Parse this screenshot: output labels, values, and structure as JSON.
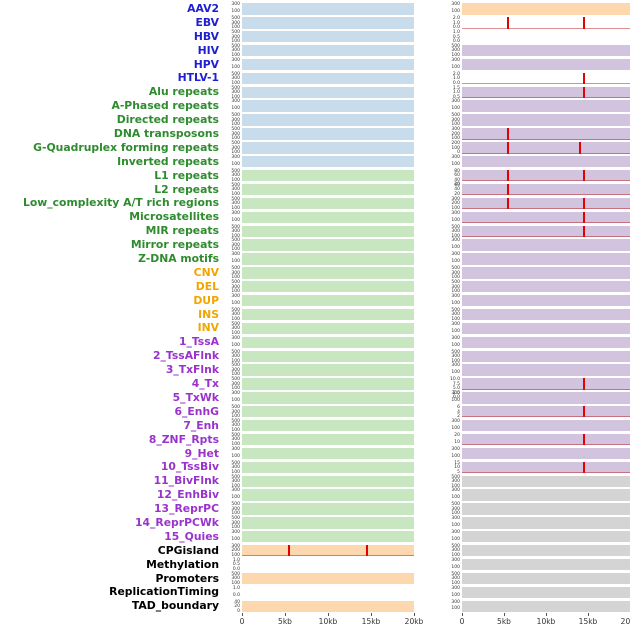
{
  "colors": {
    "labels": {
      "virus": "#1f1fd1",
      "repeat": "#2e8b2e",
      "sv": "#f0a500",
      "chromstate": "#9933cc",
      "other": "#000000"
    },
    "fills": {
      "blue": "#c8dcec",
      "green": "#c8e6bf",
      "orange": "#fdd7ae",
      "purple": "#d2c3de",
      "gray": "#d4d4d4",
      "white": "#ffffff"
    },
    "spike": "#e60000",
    "axis_text": "#333333"
  },
  "chart_data": {
    "type": "heatmap",
    "title": "",
    "description": "Two columns of per-feature genomic signal tracks over a 0-20kb window; red vertical lines mark signal spikes.",
    "x_axis": {
      "ticks": [
        "0",
        "5kb",
        "10kb",
        "15kb",
        "20kb"
      ],
      "range_kb": [
        0,
        20
      ],
      "tick_positions_kb": [
        0,
        5,
        10,
        15,
        20
      ]
    },
    "columns": [
      "left_track",
      "right_track"
    ],
    "rows": [
      {
        "label": "AAV2",
        "group": "virus",
        "left": {
          "fill": "blue",
          "yticks": [
            "300",
            "100"
          ],
          "spikes_kb": []
        },
        "right": {
          "fill": "orange",
          "yticks": [
            "300",
            "100"
          ],
          "spikes_kb": []
        }
      },
      {
        "label": "EBV",
        "group": "virus",
        "left": {
          "fill": "blue",
          "yticks": [
            "500",
            "300",
            "100"
          ],
          "spikes_kb": []
        },
        "right": {
          "fill": "white",
          "yticks": [
            "2.0",
            "1.0",
            "0.0"
          ],
          "spikes_kb": [
            5.5,
            14.5
          ]
        }
      },
      {
        "label": "HBV",
        "group": "virus",
        "left": {
          "fill": "blue",
          "yticks": [
            "500",
            "300",
            "100"
          ],
          "spikes_kb": []
        },
        "right": {
          "fill": "white",
          "yticks": [
            "1.0",
            "0.5",
            "0.0"
          ],
          "spikes_kb": []
        }
      },
      {
        "label": "HIV",
        "group": "virus",
        "left": {
          "fill": "blue",
          "yticks": [
            "500",
            "300",
            "100"
          ],
          "spikes_kb": []
        },
        "right": {
          "fill": "purple",
          "yticks": [
            "500",
            "300",
            "100"
          ],
          "spikes_kb": []
        }
      },
      {
        "label": "HPV",
        "group": "virus",
        "left": {
          "fill": "blue",
          "yticks": [
            "300",
            "100"
          ],
          "spikes_kb": []
        },
        "right": {
          "fill": "purple",
          "yticks": [
            "300",
            "100"
          ],
          "spikes_kb": []
        }
      },
      {
        "label": "HTLV-1",
        "group": "virus",
        "left": {
          "fill": "blue",
          "yticks": [
            "500",
            "300",
            "100"
          ],
          "spikes_kb": []
        },
        "right": {
          "fill": "white",
          "yticks": [
            "2.0",
            "1.0",
            "0.0"
          ],
          "spikes_kb": [
            14.5
          ]
        }
      },
      {
        "label": "Alu repeats",
        "group": "repeat",
        "left": {
          "fill": "blue",
          "yticks": [
            "500",
            "300",
            "100"
          ],
          "spikes_kb": []
        },
        "right": {
          "fill": "purple",
          "yticks": [
            "1.5",
            "1.0",
            "0.5"
          ],
          "spikes_kb": [
            14.5
          ]
        }
      },
      {
        "label": "A-Phased repeats",
        "group": "repeat",
        "left": {
          "fill": "blue",
          "yticks": [
            "300",
            "100"
          ],
          "spikes_kb": []
        },
        "right": {
          "fill": "purple",
          "yticks": [
            "300",
            "100"
          ],
          "spikes_kb": []
        }
      },
      {
        "label": "Directed repeats",
        "group": "repeat",
        "left": {
          "fill": "blue",
          "yticks": [
            "500",
            "300",
            "100"
          ],
          "spikes_kb": []
        },
        "right": {
          "fill": "purple",
          "yticks": [
            "500",
            "300",
            "100"
          ],
          "spikes_kb": []
        }
      },
      {
        "label": "DNA transposons",
        "group": "repeat",
        "left": {
          "fill": "blue",
          "yticks": [
            "500",
            "300",
            "100"
          ],
          "spikes_kb": []
        },
        "right": {
          "fill": "purple",
          "yticks": [
            "300",
            "200",
            "100"
          ],
          "spikes_kb": [
            5.5
          ]
        }
      },
      {
        "label": "G-Quadruplex forming repeats",
        "group": "repeat",
        "left": {
          "fill": "blue",
          "yticks": [
            "500",
            "300",
            "100"
          ],
          "spikes_kb": []
        },
        "right": {
          "fill": "purple",
          "yticks": [
            "200",
            "100",
            "0"
          ],
          "spikes_kb": [
            5.5,
            14.0
          ]
        }
      },
      {
        "label": "Inverted repeats",
        "group": "repeat",
        "left": {
          "fill": "blue",
          "yticks": [
            "300",
            "100"
          ],
          "spikes_kb": []
        },
        "right": {
          "fill": "purple",
          "yticks": [
            "300",
            "100"
          ],
          "spikes_kb": []
        }
      },
      {
        "label": "L1 repeats",
        "group": "repeat",
        "left": {
          "fill": "green",
          "yticks": [
            "500",
            "300",
            "100"
          ],
          "spikes_kb": []
        },
        "right": {
          "fill": "purple",
          "yticks": [
            "80",
            "60",
            "40",
            "20"
          ],
          "spikes_kb": [
            5.5,
            14.5
          ]
        }
      },
      {
        "label": "L2 repeats",
        "group": "repeat",
        "left": {
          "fill": "green",
          "yticks": [
            "500",
            "300",
            "100"
          ],
          "spikes_kb": []
        },
        "right": {
          "fill": "purple",
          "yticks": [
            "60",
            "40",
            "20"
          ],
          "spikes_kb": [
            5.5
          ]
        }
      },
      {
        "label": "Low_complexity A/T rich regions",
        "group": "repeat",
        "left": {
          "fill": "green",
          "yticks": [
            "500",
            "300",
            "100"
          ],
          "spikes_kb": []
        },
        "right": {
          "fill": "purple",
          "yticks": [
            "300",
            "200",
            "100"
          ],
          "spikes_kb": [
            5.5,
            14.5
          ]
        }
      },
      {
        "label": "Microsatellites",
        "group": "repeat",
        "left": {
          "fill": "green",
          "yticks": [
            "300",
            "100"
          ],
          "spikes_kb": []
        },
        "right": {
          "fill": "purple",
          "yticks": [
            "300",
            "100"
          ],
          "spikes_kb": [
            14.5
          ]
        }
      },
      {
        "label": "MIR repeats",
        "group": "repeat",
        "left": {
          "fill": "green",
          "yticks": [
            "500",
            "300",
            "100"
          ],
          "spikes_kb": []
        },
        "right": {
          "fill": "purple",
          "yticks": [
            "500",
            "300",
            "100"
          ],
          "spikes_kb": [
            14.5
          ]
        }
      },
      {
        "label": "Mirror repeats",
        "group": "repeat",
        "left": {
          "fill": "green",
          "yticks": [
            "500",
            "300",
            "100"
          ],
          "spikes_kb": []
        },
        "right": {
          "fill": "purple",
          "yticks": [
            "300",
            "100"
          ],
          "spikes_kb": []
        }
      },
      {
        "label": "Z-DNA motifs",
        "group": "repeat",
        "left": {
          "fill": "green",
          "yticks": [
            "300",
            "100"
          ],
          "spikes_kb": []
        },
        "right": {
          "fill": "purple",
          "yticks": [
            "300",
            "100"
          ],
          "spikes_kb": []
        }
      },
      {
        "label": "CNV",
        "group": "sv",
        "left": {
          "fill": "green",
          "yticks": [
            "500",
            "300",
            "100"
          ],
          "spikes_kb": []
        },
        "right": {
          "fill": "purple",
          "yticks": [
            "500",
            "300",
            "100"
          ],
          "spikes_kb": []
        }
      },
      {
        "label": "DEL",
        "group": "sv",
        "left": {
          "fill": "green",
          "yticks": [
            "500",
            "300",
            "100"
          ],
          "spikes_kb": []
        },
        "right": {
          "fill": "purple",
          "yticks": [
            "500",
            "300",
            "100"
          ],
          "spikes_kb": []
        }
      },
      {
        "label": "DUP",
        "group": "sv",
        "left": {
          "fill": "green",
          "yticks": [
            "300",
            "100"
          ],
          "spikes_kb": []
        },
        "right": {
          "fill": "purple",
          "yticks": [
            "300",
            "100"
          ],
          "spikes_kb": []
        }
      },
      {
        "label": "INS",
        "group": "sv",
        "left": {
          "fill": "green",
          "yticks": [
            "500",
            "300",
            "100"
          ],
          "spikes_kb": []
        },
        "right": {
          "fill": "purple",
          "yticks": [
            "500",
            "300",
            "100"
          ],
          "spikes_kb": []
        }
      },
      {
        "label": "INV",
        "group": "sv",
        "left": {
          "fill": "green",
          "yticks": [
            "500",
            "300",
            "100"
          ],
          "spikes_kb": []
        },
        "right": {
          "fill": "purple",
          "yticks": [
            "300",
            "100"
          ],
          "spikes_kb": []
        }
      },
      {
        "label": "1_TssA",
        "group": "chromstate",
        "left": {
          "fill": "green",
          "yticks": [
            "300",
            "100"
          ],
          "spikes_kb": []
        },
        "right": {
          "fill": "purple",
          "yticks": [
            "300",
            "100"
          ],
          "spikes_kb": []
        }
      },
      {
        "label": "2_TssAFlnk",
        "group": "chromstate",
        "left": {
          "fill": "green",
          "yticks": [
            "500",
            "300",
            "100"
          ],
          "spikes_kb": []
        },
        "right": {
          "fill": "purple",
          "yticks": [
            "500",
            "300",
            "100"
          ],
          "spikes_kb": []
        }
      },
      {
        "label": "3_TxFlnk",
        "group": "chromstate",
        "left": {
          "fill": "green",
          "yticks": [
            "500",
            "300",
            "100"
          ],
          "spikes_kb": []
        },
        "right": {
          "fill": "purple",
          "yticks": [
            "300",
            "100"
          ],
          "spikes_kb": []
        }
      },
      {
        "label": "4_Tx",
        "group": "chromstate",
        "left": {
          "fill": "green",
          "yticks": [
            "500",
            "300",
            "100"
          ],
          "spikes_kb": []
        },
        "right": {
          "fill": "purple",
          "yticks": [
            "10.0",
            "7.5",
            "5.0",
            "2.5",
            "0.0"
          ],
          "spikes_kb": [
            14.5
          ]
        }
      },
      {
        "label": "5_TxWk",
        "group": "chromstate",
        "left": {
          "fill": "green",
          "yticks": [
            "300",
            "100"
          ],
          "spikes_kb": []
        },
        "right": {
          "fill": "purple",
          "yticks": [
            "300",
            "100"
          ],
          "spikes_kb": []
        }
      },
      {
        "label": "6_EnhG",
        "group": "chromstate",
        "left": {
          "fill": "green",
          "yticks": [
            "500",
            "300",
            "100"
          ],
          "spikes_kb": []
        },
        "right": {
          "fill": "purple",
          "yticks": [
            "6",
            "4",
            "2"
          ],
          "spikes_kb": [
            14.5
          ]
        }
      },
      {
        "label": "7_Enh",
        "group": "chromstate",
        "left": {
          "fill": "green",
          "yticks": [
            "500",
            "300",
            "100"
          ],
          "spikes_kb": []
        },
        "right": {
          "fill": "purple",
          "yticks": [
            "300",
            "100"
          ],
          "spikes_kb": []
        }
      },
      {
        "label": "8_ZNF_Rpts",
        "group": "chromstate",
        "left": {
          "fill": "green",
          "yticks": [
            "500",
            "300",
            "100"
          ],
          "spikes_kb": []
        },
        "right": {
          "fill": "purple",
          "yticks": [
            "20",
            "10"
          ],
          "spikes_kb": [
            14.5
          ]
        }
      },
      {
        "label": "9_Het",
        "group": "chromstate",
        "left": {
          "fill": "green",
          "yticks": [
            "300",
            "100"
          ],
          "spikes_kb": []
        },
        "right": {
          "fill": "purple",
          "yticks": [
            "300",
            "100"
          ],
          "spikes_kb": []
        }
      },
      {
        "label": "10_TssBiv",
        "group": "chromstate",
        "left": {
          "fill": "green",
          "yticks": [
            "500",
            "300",
            "100"
          ],
          "spikes_kb": []
        },
        "right": {
          "fill": "purple",
          "yticks": [
            "15",
            "10",
            "5"
          ],
          "spikes_kb": [
            14.5
          ]
        }
      },
      {
        "label": "11_BivFlnk",
        "group": "chromstate",
        "left": {
          "fill": "green",
          "yticks": [
            "500",
            "300",
            "100"
          ],
          "spikes_kb": []
        },
        "right": {
          "fill": "gray",
          "yticks": [
            "500",
            "300",
            "100"
          ],
          "spikes_kb": []
        }
      },
      {
        "label": "12_EnhBiv",
        "group": "chromstate",
        "left": {
          "fill": "green",
          "yticks": [
            "300",
            "100"
          ],
          "spikes_kb": []
        },
        "right": {
          "fill": "gray",
          "yticks": [
            "300",
            "100"
          ],
          "spikes_kb": []
        }
      },
      {
        "label": "13_ReprPC",
        "group": "chromstate",
        "left": {
          "fill": "green",
          "yticks": [
            "500",
            "300",
            "100"
          ],
          "spikes_kb": []
        },
        "right": {
          "fill": "gray",
          "yticks": [
            "500",
            "300",
            "100"
          ],
          "spikes_kb": []
        }
      },
      {
        "label": "14_ReprPCWk",
        "group": "chromstate",
        "left": {
          "fill": "green",
          "yticks": [
            "500",
            "300",
            "100"
          ],
          "spikes_kb": []
        },
        "right": {
          "fill": "gray",
          "yticks": [
            "300",
            "100"
          ],
          "spikes_kb": []
        }
      },
      {
        "label": "15_Quies",
        "group": "chromstate",
        "left": {
          "fill": "green",
          "yticks": [
            "300",
            "100"
          ],
          "spikes_kb": []
        },
        "right": {
          "fill": "gray",
          "yticks": [
            "300",
            "100"
          ],
          "spikes_kb": []
        }
      },
      {
        "label": "CPGisland",
        "group": "other",
        "left": {
          "fill": "orange",
          "yticks": [
            "300",
            "200",
            "100"
          ],
          "spikes_kb": [
            5.5,
            14.5
          ]
        },
        "right": {
          "fill": "gray",
          "yticks": [
            "500",
            "300",
            "100"
          ],
          "spikes_kb": []
        }
      },
      {
        "label": "Methylation",
        "group": "other",
        "left": {
          "fill": "white",
          "yticks": [
            "1.0",
            "0.5",
            "0.0"
          ],
          "spikes_kb": []
        },
        "right": {
          "fill": "gray",
          "yticks": [
            "300",
            "100"
          ],
          "spikes_kb": []
        }
      },
      {
        "label": "Promoters",
        "group": "other",
        "left": {
          "fill": "orange",
          "yticks": [
            "500",
            "300",
            "100"
          ],
          "spikes_kb": []
        },
        "right": {
          "fill": "gray",
          "yticks": [
            "500",
            "300",
            "100"
          ],
          "spikes_kb": []
        }
      },
      {
        "label": "ReplicationTiming",
        "group": "other",
        "left": {
          "fill": "white",
          "yticks": [
            "1.0",
            "0.0"
          ],
          "spikes_kb": []
        },
        "right": {
          "fill": "gray",
          "yticks": [
            "300",
            "100"
          ],
          "spikes_kb": []
        }
      },
      {
        "label": "TAD_boundary",
        "group": "other",
        "left": {
          "fill": "orange",
          "yticks": [
            "40",
            "20",
            "0"
          ],
          "spikes_kb": []
        },
        "right": {
          "fill": "gray",
          "yticks": [
            "300",
            "100"
          ],
          "spikes_kb": []
        }
      }
    ]
  }
}
